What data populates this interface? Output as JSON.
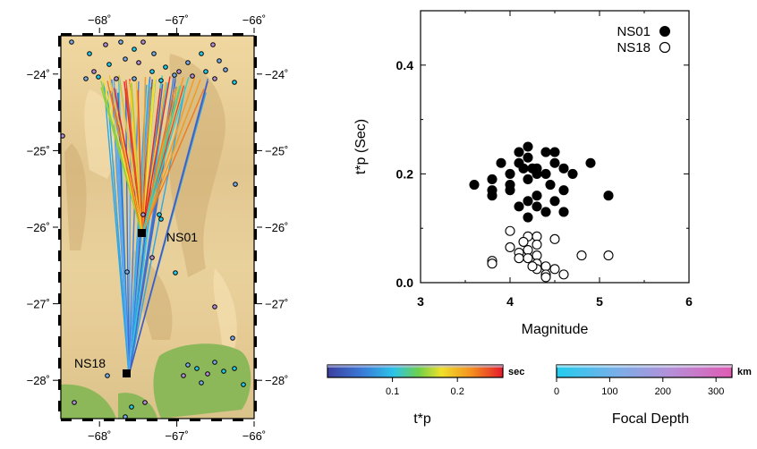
{
  "chart_data": [
    {
      "type": "map",
      "lon_range": [
        -68.5,
        -66.0
      ],
      "lat_range": [
        -28.5,
        -23.5
      ],
      "x_ticks": [
        {
          "value": -68,
          "label": "−68˚"
        },
        {
          "value": -67,
          "label": "−67˚"
        },
        {
          "value": -66,
          "label": "−66˚"
        }
      ],
      "y_ticks": [
        {
          "value": -24,
          "label": "−24˚"
        },
        {
          "value": -25,
          "label": "−25˚"
        },
        {
          "value": -26,
          "label": "−26˚"
        },
        {
          "value": -27,
          "label": "−27˚"
        },
        {
          "value": -28,
          "label": "−28˚"
        }
      ],
      "stations": [
        {
          "name": "NS01",
          "lon": -67.45,
          "lat": -26.1
        },
        {
          "name": "NS18",
          "lon": -67.62,
          "lat": -27.93
        }
      ],
      "colors": {
        "terrain_high": "#e8c88a",
        "terrain_low": "#8fb35a",
        "station": "#000000"
      }
    },
    {
      "type": "scatter",
      "xlabel": "Magnitude",
      "ylabel": "t*p (Sec)",
      "xlim": [
        3,
        6
      ],
      "ylim": [
        0,
        0.5
      ],
      "x_ticks": [
        3,
        4,
        5,
        6
      ],
      "y_ticks": [
        {
          "value": 0.0,
          "label": "0.0"
        },
        {
          "value": 0.2,
          "label": "0.2"
        },
        {
          "value": 0.4,
          "label": "0.4"
        }
      ],
      "legend_position": "top-right",
      "series": [
        {
          "name": "NS01",
          "marker": "filled",
          "points": [
            [
              3.6,
              0.18
            ],
            [
              3.8,
              0.19
            ],
            [
              3.8,
              0.17
            ],
            [
              3.8,
              0.16
            ],
            [
              3.9,
              0.22
            ],
            [
              4.0,
              0.18
            ],
            [
              4.0,
              0.17
            ],
            [
              4.1,
              0.24
            ],
            [
              4.1,
              0.22
            ],
            [
              4.2,
              0.25
            ],
            [
              4.2,
              0.23
            ],
            [
              4.3,
              0.21
            ],
            [
              4.2,
              0.19
            ],
            [
              4.3,
              0.2
            ],
            [
              4.4,
              0.2
            ],
            [
              4.5,
              0.22
            ],
            [
              4.5,
              0.24
            ],
            [
              4.6,
              0.21
            ],
            [
              4.7,
              0.2
            ],
            [
              4.2,
              0.15
            ],
            [
              4.3,
              0.14
            ],
            [
              4.3,
              0.16
            ],
            [
              4.4,
              0.13
            ],
            [
              4.5,
              0.15
            ],
            [
              4.6,
              0.17
            ],
            [
              4.2,
              0.12
            ],
            [
              4.1,
              0.14
            ],
            [
              4.6,
              0.13
            ],
            [
              4.0,
              0.2
            ],
            [
              4.4,
              0.24
            ],
            [
              4.9,
              0.22
            ],
            [
              5.1,
              0.16
            ],
            [
              4.15,
              0.21
            ],
            [
              4.45,
              0.18
            ],
            [
              4.25,
              0.21
            ]
          ]
        },
        {
          "name": "NS18",
          "marker": "open",
          "points": [
            [
              3.8,
              0.04
            ],
            [
              3.8,
              0.035
            ],
            [
              4.0,
              0.095
            ],
            [
              4.0,
              0.065
            ],
            [
              4.1,
              0.055
            ],
            [
              4.1,
              0.045
            ],
            [
              4.2,
              0.085
            ],
            [
              4.2,
              0.06
            ],
            [
              4.2,
              0.045
            ],
            [
              4.3,
              0.085
            ],
            [
              4.3,
              0.07
            ],
            [
              4.3,
              0.05
            ],
            [
              4.3,
              0.035
            ],
            [
              4.3,
              0.025
            ],
            [
              4.4,
              0.03
            ],
            [
              4.4,
              0.015
            ],
            [
              4.4,
              0.01
            ],
            [
              4.5,
              0.08
            ],
            [
              4.5,
              0.025
            ],
            [
              4.6,
              0.015
            ],
            [
              4.8,
              0.05
            ],
            [
              5.1,
              0.05
            ],
            [
              4.15,
              0.075
            ],
            [
              4.25,
              0.03
            ]
          ]
        }
      ]
    },
    {
      "type": "colorbar",
      "name": "tp-scale",
      "label": "t*p",
      "unit": "sec",
      "range": [
        0,
        0.27
      ],
      "ticks": [
        {
          "value": 0.1,
          "label": "0.1"
        },
        {
          "value": 0.2,
          "label": "0.2"
        }
      ],
      "colors": [
        "#3b4bb0",
        "#2fa5e6",
        "#36d0c0",
        "#8fd23a",
        "#f2e22a",
        "#f59a23",
        "#e8232a"
      ]
    },
    {
      "type": "colorbar",
      "name": "depth-scale",
      "label": "Focal Depth",
      "unit": "km",
      "range": [
        0,
        330
      ],
      "ticks": [
        {
          "value": 0,
          "label": "0"
        },
        {
          "value": 100,
          "label": "100"
        },
        {
          "value": 200,
          "label": "200"
        },
        {
          "value": 300,
          "label": "300"
        }
      ],
      "colors": [
        "#27c8ee",
        "#7fa8e6",
        "#b98bd6",
        "#de5cb6"
      ]
    }
  ]
}
